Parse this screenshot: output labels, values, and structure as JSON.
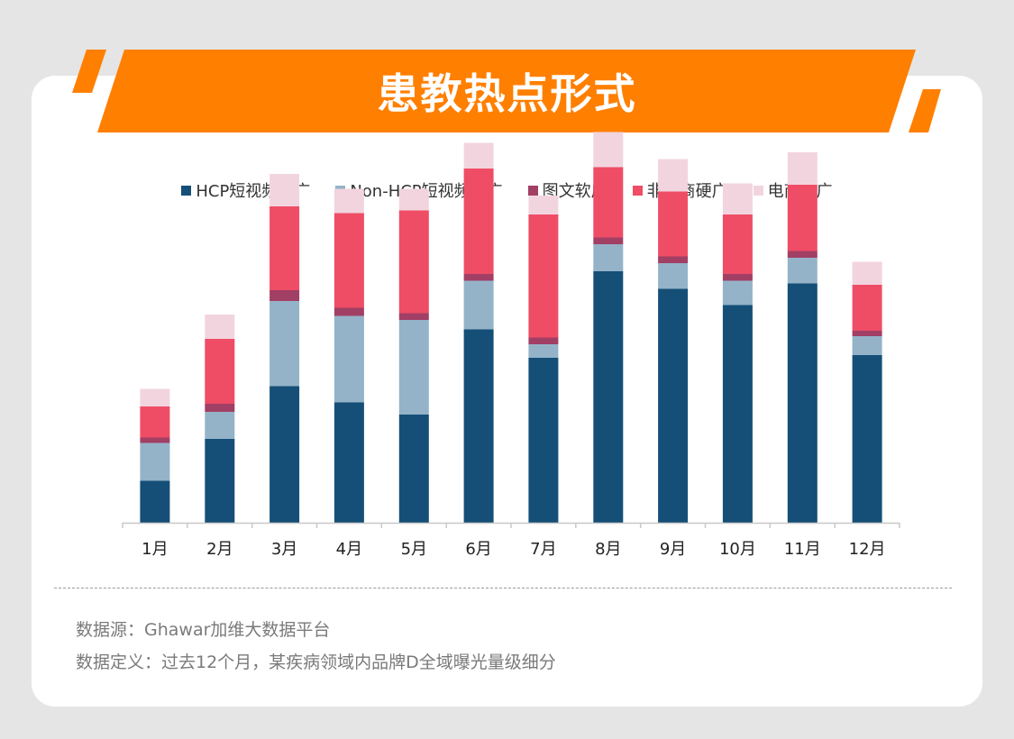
{
  "header": {
    "title": "患教热点形式"
  },
  "colors": {
    "banner": "#ff7f00",
    "hcp_short_video": "#154f77",
    "non_hcp_short_video": "#94b3c8",
    "image_text": "#a23f64",
    "non_ecommerce_hard_ad": "#ef4d66",
    "ecommerce_hard_ad": "#f2d4df"
  },
  "chart_data": {
    "type": "bar",
    "stacked": true,
    "categories": [
      "1月",
      "2月",
      "3月",
      "4月",
      "5月",
      "6月",
      "7月",
      "8月",
      "9月",
      "10月",
      "11月",
      "12月"
    ],
    "series": [
      {
        "name": "HCP短视频软广",
        "color": "#154f77",
        "values": [
          31,
          62,
          101,
          89,
          80,
          143,
          122,
          186,
          173,
          161,
          177,
          124
        ]
      },
      {
        "name": "Non-HCP短视频软广",
        "color": "#94b3c8",
        "values": [
          28,
          20,
          63,
          64,
          70,
          36,
          10,
          20,
          19,
          18,
          19,
          14
        ]
      },
      {
        "name": "图文软广",
        "color": "#a23f64",
        "values": [
          4,
          6,
          8,
          6,
          5,
          5,
          5,
          5,
          5,
          5,
          5,
          4
        ]
      },
      {
        "name": "非电商硬广",
        "color": "#ef4d66",
        "values": [
          23,
          48,
          62,
          70,
          76,
          78,
          91,
          52,
          48,
          44,
          49,
          34
        ]
      },
      {
        "name": "电商硬广",
        "color": "#f2d4df",
        "values": [
          13,
          18,
          24,
          18,
          16,
          19,
          14,
          26,
          24,
          23,
          24,
          17
        ]
      }
    ],
    "ylim": [
      0,
      300
    ],
    "grid": false,
    "legend_position": "top-center"
  },
  "footer": {
    "source": "数据源：Ghawar加维大数据平台",
    "definition": "数据定义：过去12个月，某疾病领域内品牌D全域曝光量级细分"
  }
}
